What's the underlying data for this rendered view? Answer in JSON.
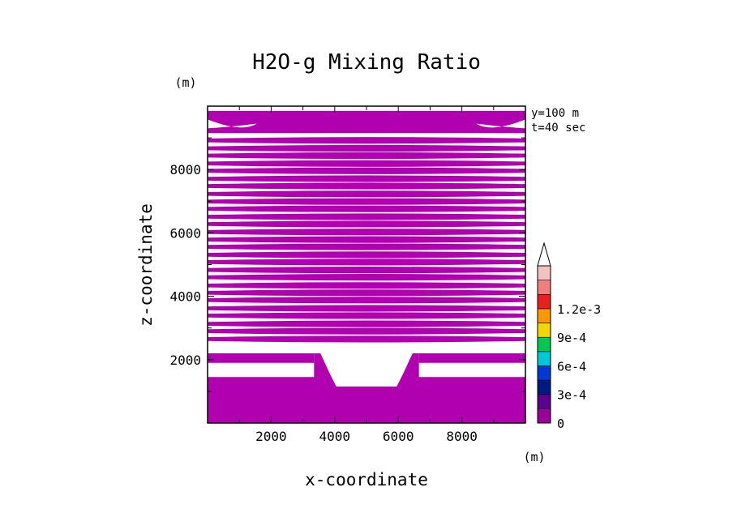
{
  "chart_data": {
    "type": "heatmap",
    "title": "H2O-g Mixing Ratio",
    "xlabel": "x-coordinate",
    "ylabel": "z-coordinate",
    "x_unit": "(m)",
    "y_unit": "(m)",
    "annotations": [
      "y=100 m",
      "t=40 sec"
    ],
    "xlim": [
      0,
      10000
    ],
    "ylim": [
      0,
      10000
    ],
    "x_ticks": [
      2000,
      4000,
      6000,
      8000
    ],
    "y_ticks": [
      2000,
      4000,
      6000,
      8000
    ],
    "x_tick_labels": [
      "2000",
      "4000",
      "6000",
      "8000"
    ],
    "y_tick_labels": [
      "2000",
      "4000",
      "6000",
      "8000"
    ],
    "colorbar": {
      "levels": [
        0,
        0.00015,
        0.0003,
        0.00045,
        0.0006,
        0.00075,
        0.0009,
        0.00105,
        0.0012
      ],
      "tick_labels": [
        "0",
        "3e-4",
        "6e-4",
        "9e-4",
        "1.2e-3"
      ],
      "tick_values": [
        0,
        0.0003,
        0.0006,
        0.0009,
        0.0012
      ],
      "colors": [
        "#9a009a",
        "#5c0090",
        "#001a80",
        "#0038d8",
        "#00c8d8",
        "#00c850",
        "#f0d800",
        "#ff9800",
        "#e82020",
        "#f08080",
        "#f4c0c0"
      ],
      "extend": "max"
    },
    "fill_color": "#b000b0",
    "field": {
      "description_values": "mixing ratio in the 0 to 1.5e-4 band inside filled regions, white elsewhere",
      "lower_band": {
        "z_range": [
          0,
          1450
        ],
        "value_level": 0
      },
      "mountain": {
        "x_range": [
          3350,
          6650
        ],
        "top_z": 2200,
        "valley_floor_z": 1150,
        "valley_x_range": [
          4050,
          5950
        ]
      },
      "layer_rows_z": [
        2650,
        2900,
        3130,
        3390,
        3620,
        3880,
        4110,
        4340,
        4600,
        4830,
        5080,
        5310,
        5560,
        5790,
        6030,
        6280,
        6510,
        6760,
        6990,
        7230,
        7480,
        7710,
        7960,
        8190,
        8440,
        8670,
        8920,
        9450
      ],
      "layer_thickness_edge_m": 120,
      "layer_thickness_center_m": 210,
      "top_layer": {
        "z_range": [
          9150,
          9850
        ],
        "edge_gap_x": [
          0,
          1550,
          8450,
          10000
        ]
      }
    }
  }
}
